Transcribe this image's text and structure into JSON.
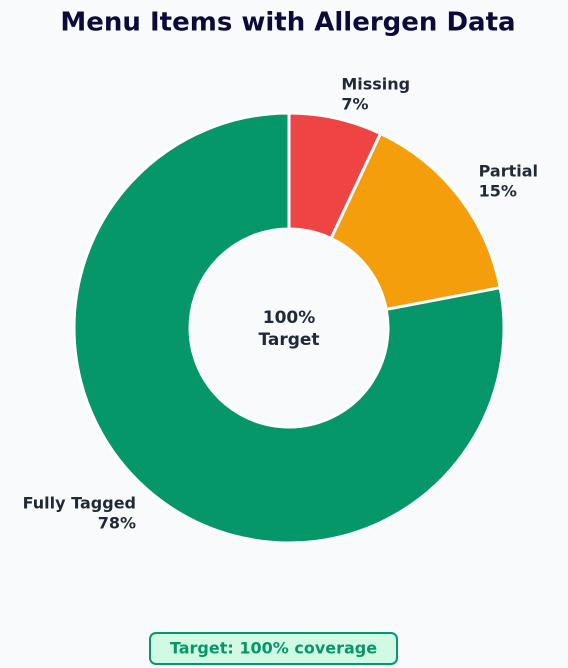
{
  "chart_data": {
    "type": "donut",
    "title": "Menu Items with Allergen Data",
    "categories": [
      "Missing",
      "Partial",
      "Fully Tagged"
    ],
    "values": [
      7,
      15,
      78
    ],
    "value_labels": [
      "7%",
      "15%",
      "78%"
    ],
    "colors": [
      "#ef4444",
      "#f59e0b",
      "#059669"
    ],
    "center_text": [
      "100%",
      "Target"
    ],
    "footer": "Target: 100% coverage"
  }
}
